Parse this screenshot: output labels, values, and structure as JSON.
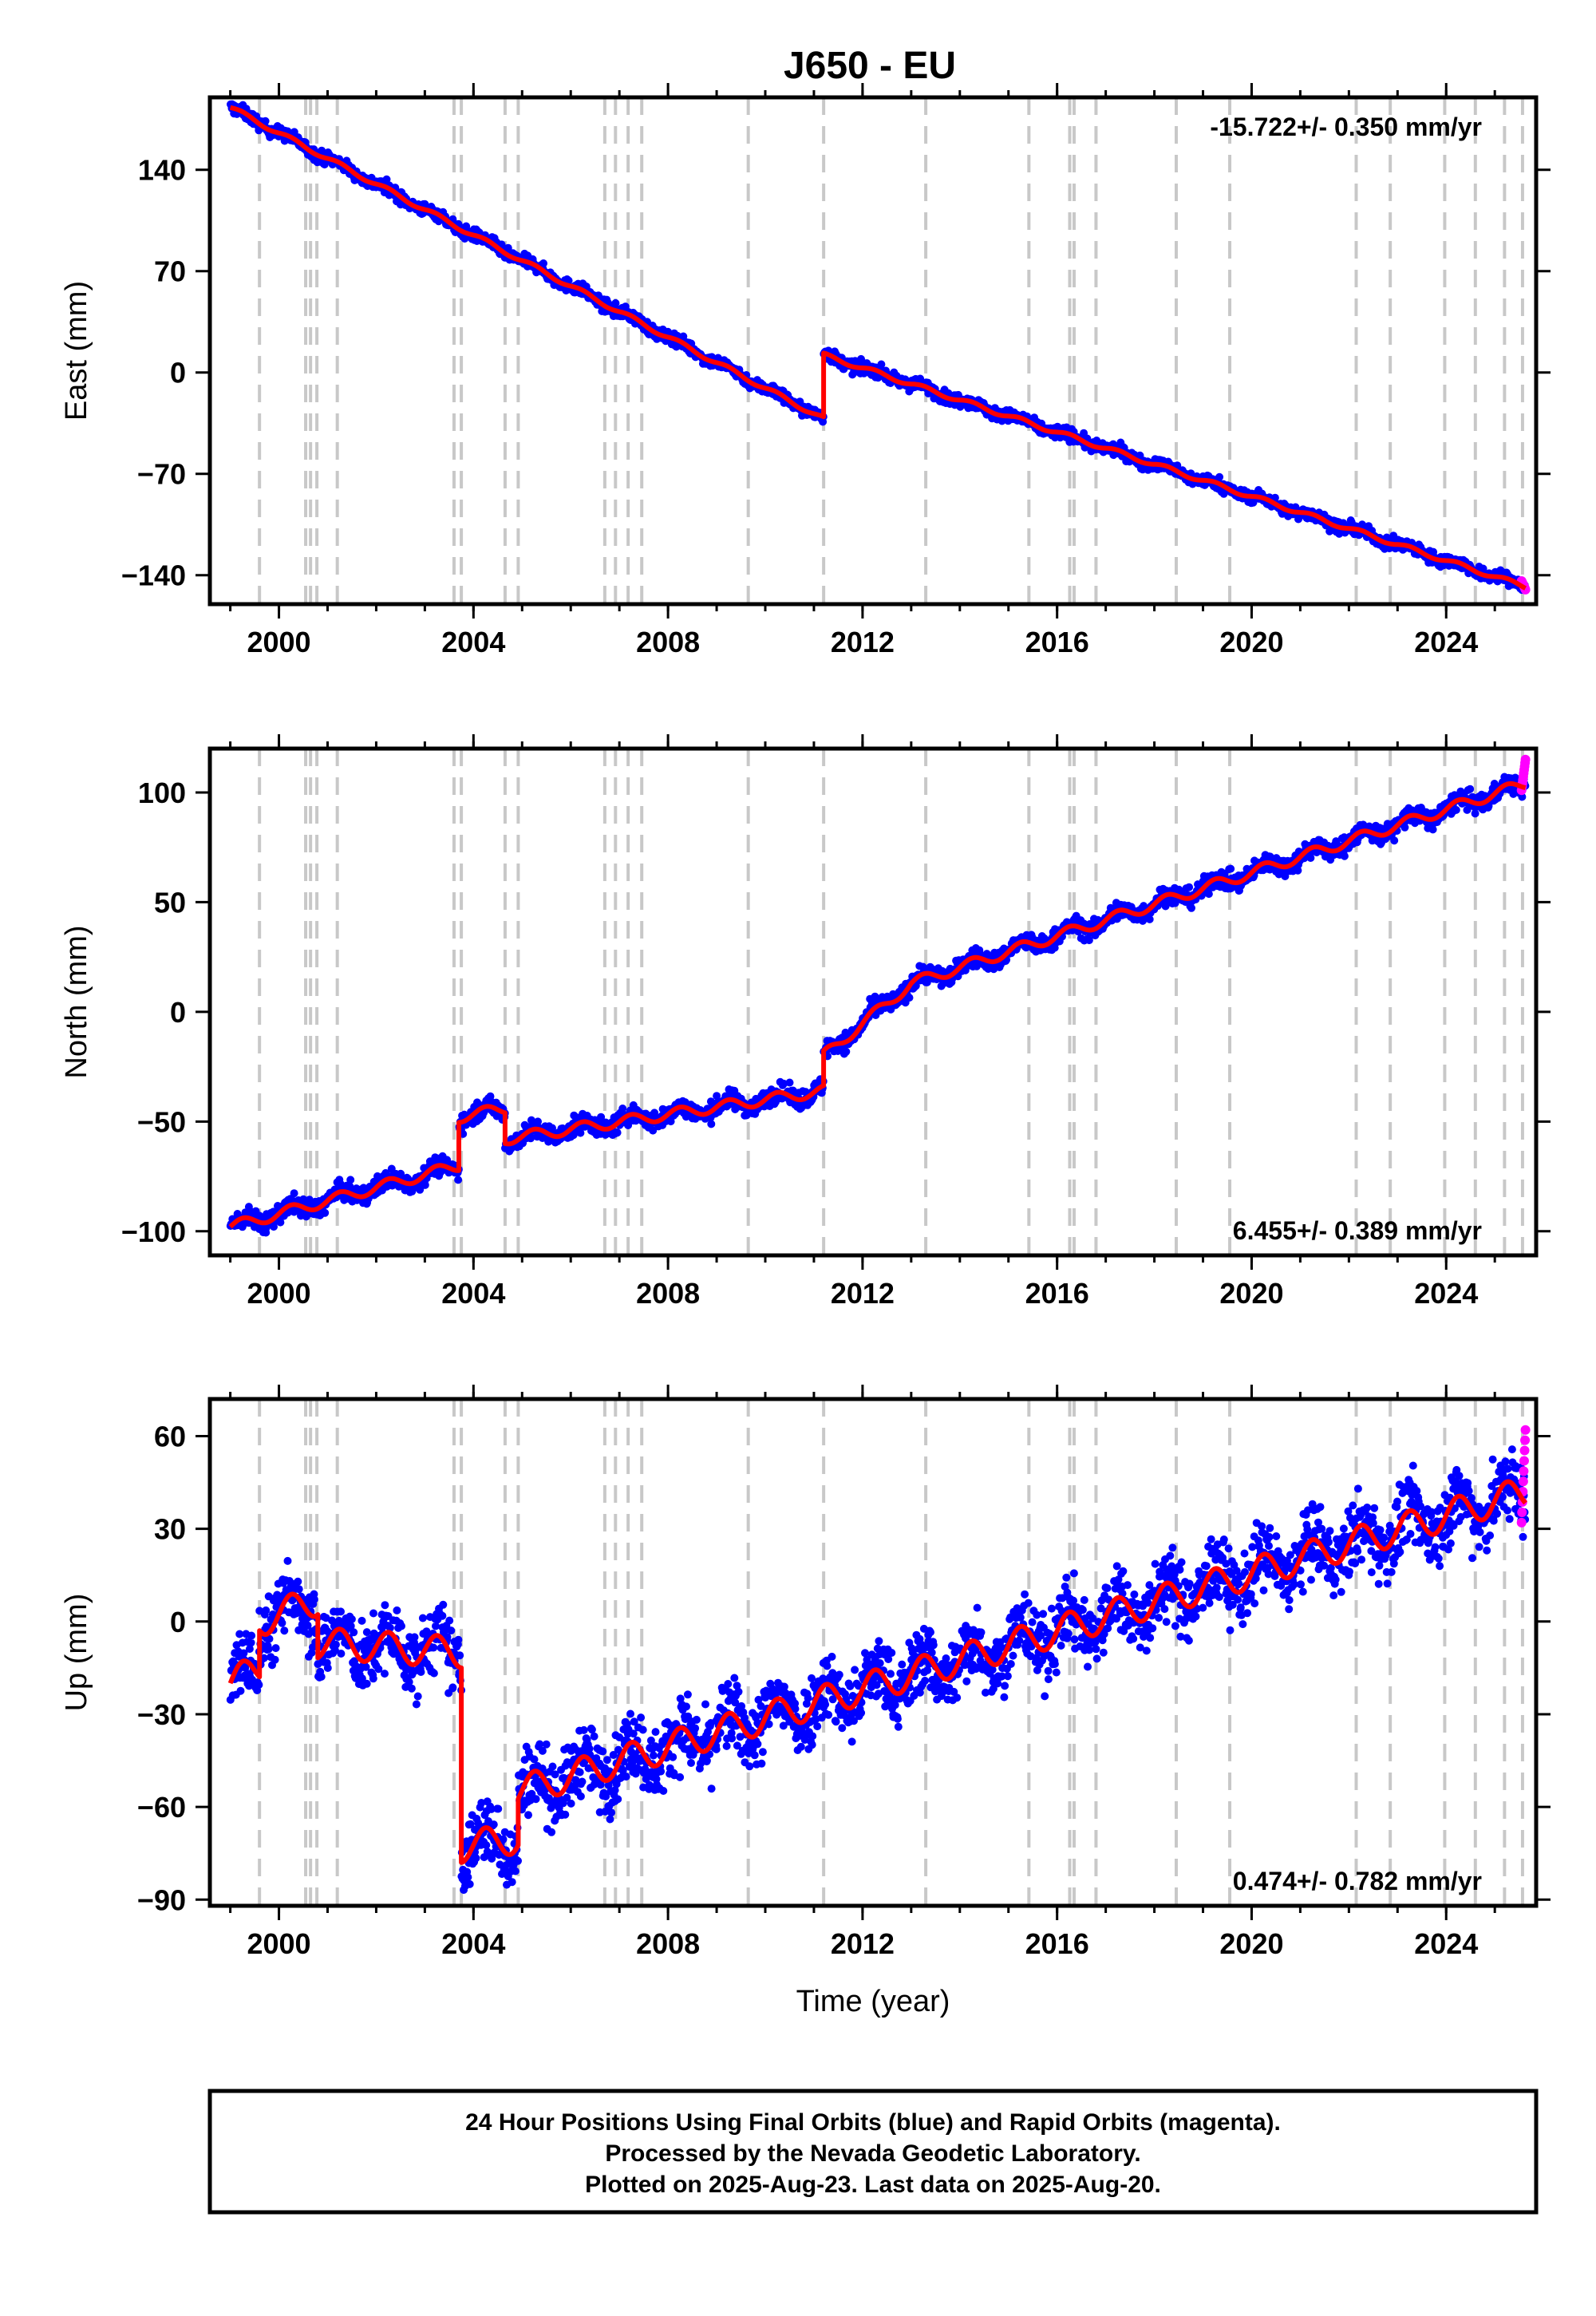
{
  "title": "J650 - EU",
  "colors": {
    "final": "#0000ff",
    "rapid": "#ff00ff",
    "model": "#ff0000",
    "event": "#c8c8c8",
    "axis": "#000000"
  },
  "events": [
    1999.6,
    2000.55,
    2000.65,
    2000.78,
    2001.2,
    2003.6,
    2003.75,
    2004.65,
    2004.92,
    2006.7,
    2006.92,
    2007.18,
    2007.46,
    2009.65,
    2011.2,
    2013.3,
    2015.42,
    2016.26,
    2016.35,
    2016.8,
    2018.45,
    2019.55,
    2022.15,
    2022.85,
    2023.97,
    2024.6,
    2025.2,
    2025.57
  ],
  "chart_data": [
    {
      "type": "scatter",
      "ylabel": "East (mm)",
      "rate_label": "-15.722+/- 0.350 mm/yr",
      "rate_position": "top-right",
      "xlim": [
        1998.58,
        2025.85
      ],
      "ylim": [
        -160,
        190
      ],
      "xticks": [
        2000,
        2004,
        2008,
        2012,
        2016,
        2020,
        2024
      ],
      "xtick_labels": [
        "2000",
        "2004",
        "2008",
        "2012",
        "2016",
        "2020",
        "2024"
      ],
      "yticks": [
        140,
        70,
        0,
        -70,
        -140
      ],
      "ytick_labels": [
        "140",
        "70",
        "0",
        "−70",
        "−140"
      ],
      "trend_segments": [
        {
          "x": [
            1999.0,
            2011.2
          ],
          "y": [
            183,
            -32
          ]
        },
        {
          "x": [
            2011.2,
            2025.63
          ],
          "y": [
            12,
            -148
          ]
        }
      ],
      "seasonal_amp": 1.5,
      "noise": 3,
      "rapid_x": [
        2025.55,
        2025.63
      ],
      "rapid_y": [
        -144,
        -150
      ]
    },
    {
      "type": "scatter",
      "ylabel": "North (mm)",
      "rate_label": "6.455+/- 0.389 mm/yr",
      "rate_position": "bottom-right",
      "xlim": [
        1998.58,
        2025.85
      ],
      "ylim": [
        -111,
        120
      ],
      "xticks": [
        2000,
        2004,
        2008,
        2012,
        2016,
        2020,
        2024
      ],
      "xtick_labels": [
        "2000",
        "2004",
        "2008",
        "2012",
        "2016",
        "2020",
        "2024"
      ],
      "yticks": [
        100,
        50,
        0,
        -50,
        -100
      ],
      "ytick_labels": [
        "100",
        "50",
        "0",
        "−50",
        "−100"
      ],
      "trend_segments": [
        {
          "x": [
            1999.0,
            2003.7
          ],
          "y": [
            -98,
            -70
          ]
        },
        {
          "x": [
            2003.7,
            2004.65
          ],
          "y": [
            -48,
            -44
          ]
        },
        {
          "x": [
            2004.65,
            2011.2
          ],
          "y": [
            -58,
            -36
          ]
        },
        {
          "x": [
            2011.2,
            2013.0
          ],
          "y": [
            -20,
            13
          ]
        },
        {
          "x": [
            2013.0,
            2025.63
          ],
          "y": [
            13,
            104
          ]
        }
      ],
      "seasonal_amp": 2.5,
      "noise": 3,
      "rapid_x": [
        2025.55,
        2025.63
      ],
      "rapid_y": [
        101,
        115
      ]
    },
    {
      "type": "scatter",
      "ylabel": "Up (mm)",
      "xlabel": "Time (year)",
      "rate_label": "0.474+/- 0.782 mm/yr",
      "rate_position": "bottom-right",
      "xlim": [
        1998.58,
        2025.85
      ],
      "ylim": [
        -92,
        72
      ],
      "xticks": [
        2000,
        2004,
        2008,
        2012,
        2016,
        2020,
        2024
      ],
      "xtick_labels": [
        "2000",
        "2004",
        "2008",
        "2012",
        "2016",
        "2020",
        "2024"
      ],
      "yticks": [
        60,
        30,
        0,
        -30,
        -60,
        -90
      ],
      "ytick_labels": [
        "60",
        "30",
        "0",
        "−30",
        "−60",
        "−90"
      ],
      "trend_segments": [
        {
          "x": [
            1999.0,
            1999.6
          ],
          "y": [
            -20,
            -15
          ]
        },
        {
          "x": [
            1999.6,
            2000.8
          ],
          "y": [
            0,
            7
          ]
        },
        {
          "x": [
            2000.8,
            2003.75
          ],
          "y": [
            -7,
            -10
          ]
        },
        {
          "x": [
            2003.75,
            2004.92
          ],
          "y": [
            -73,
            -70
          ]
        },
        {
          "x": [
            2004.92,
            2025.63
          ],
          "y": [
            -55,
            42
          ]
        }
      ],
      "seasonal_amp": 5,
      "noise": 8,
      "rapid_x": [
        2025.55,
        2025.63
      ],
      "rapid_y": [
        32,
        62
      ]
    }
  ],
  "caption": [
    "24 Hour Positions Using Final Orbits (blue) and Rapid Orbits (magenta).",
    "Processed by the Nevada Geodetic Laboratory.",
    "Plotted on 2025-Aug-23. Last data on 2025-Aug-20."
  ]
}
